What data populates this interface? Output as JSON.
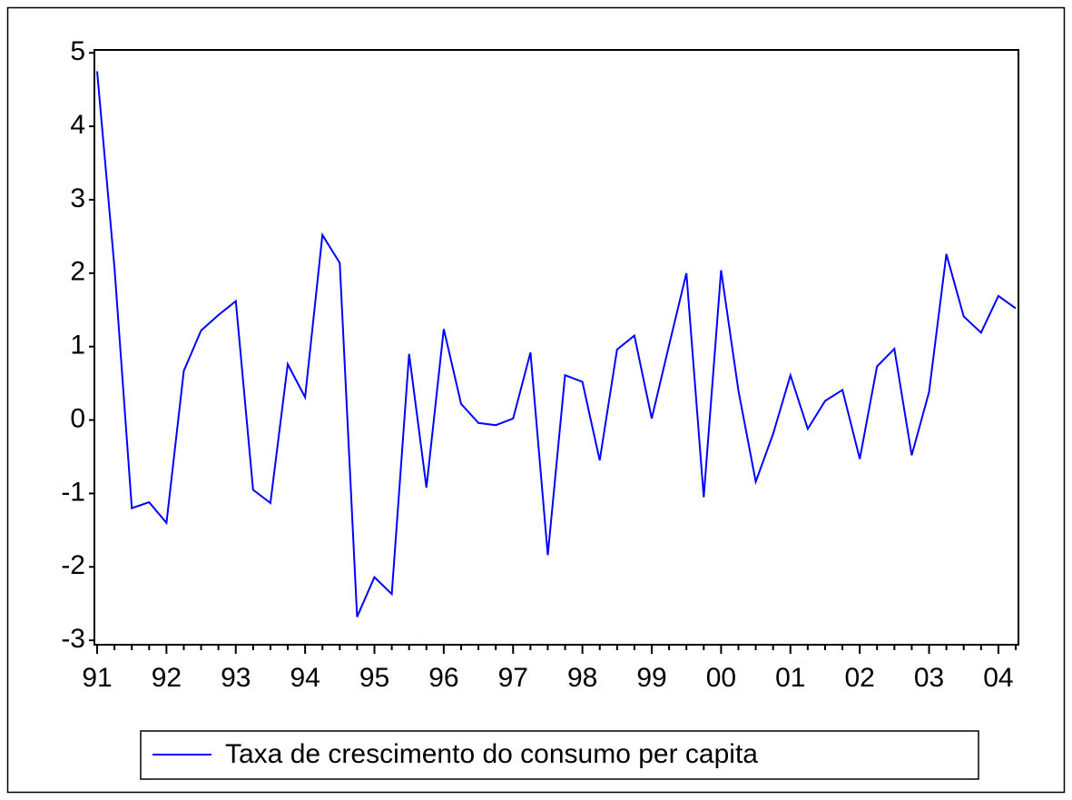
{
  "chart_data": {
    "type": "line",
    "categories": [
      "91",
      null,
      null,
      null,
      "92",
      null,
      null,
      null,
      "93",
      null,
      null,
      null,
      "94",
      null,
      null,
      null,
      "95",
      null,
      null,
      null,
      "96",
      null,
      null,
      null,
      "97",
      null,
      null,
      null,
      "98",
      null,
      null,
      null,
      "99",
      null,
      null,
      null,
      "00",
      null,
      null,
      null,
      "01",
      null,
      null,
      null,
      "02",
      null,
      null,
      null,
      "03",
      null,
      null,
      null,
      "04",
      null
    ],
    "series": [
      {
        "name": "Taxa de crescimento do consumo per capita",
        "color": "#0000ff",
        "values": [
          4.75,
          2.08,
          -1.2,
          -1.12,
          -1.4,
          0.67,
          1.22,
          1.43,
          1.62,
          -0.95,
          -1.13,
          0.76,
          0.31,
          2.52,
          2.14,
          -2.68,
          -2.14,
          -2.37,
          0.9,
          -0.92,
          1.24,
          0.22,
          -0.04,
          -0.07,
          0.02,
          0.92,
          -1.84,
          0.61,
          0.52,
          -0.55,
          0.96,
          1.15,
          0.02,
          1.02,
          2.0,
          -1.05,
          2.04,
          0.4,
          -0.84,
          -0.19,
          0.61,
          -0.12,
          0.26,
          0.41,
          -0.53,
          0.73,
          0.97,
          -0.48,
          0.38,
          2.26,
          1.41,
          1.19,
          1.69,
          1.52
        ]
      }
    ],
    "ylim": [
      -3.06,
      5.04
    ],
    "yticks": [
      -3,
      -2,
      -1,
      0,
      1,
      2,
      3,
      4,
      5
    ],
    "grid": false,
    "legend": "bottom"
  }
}
